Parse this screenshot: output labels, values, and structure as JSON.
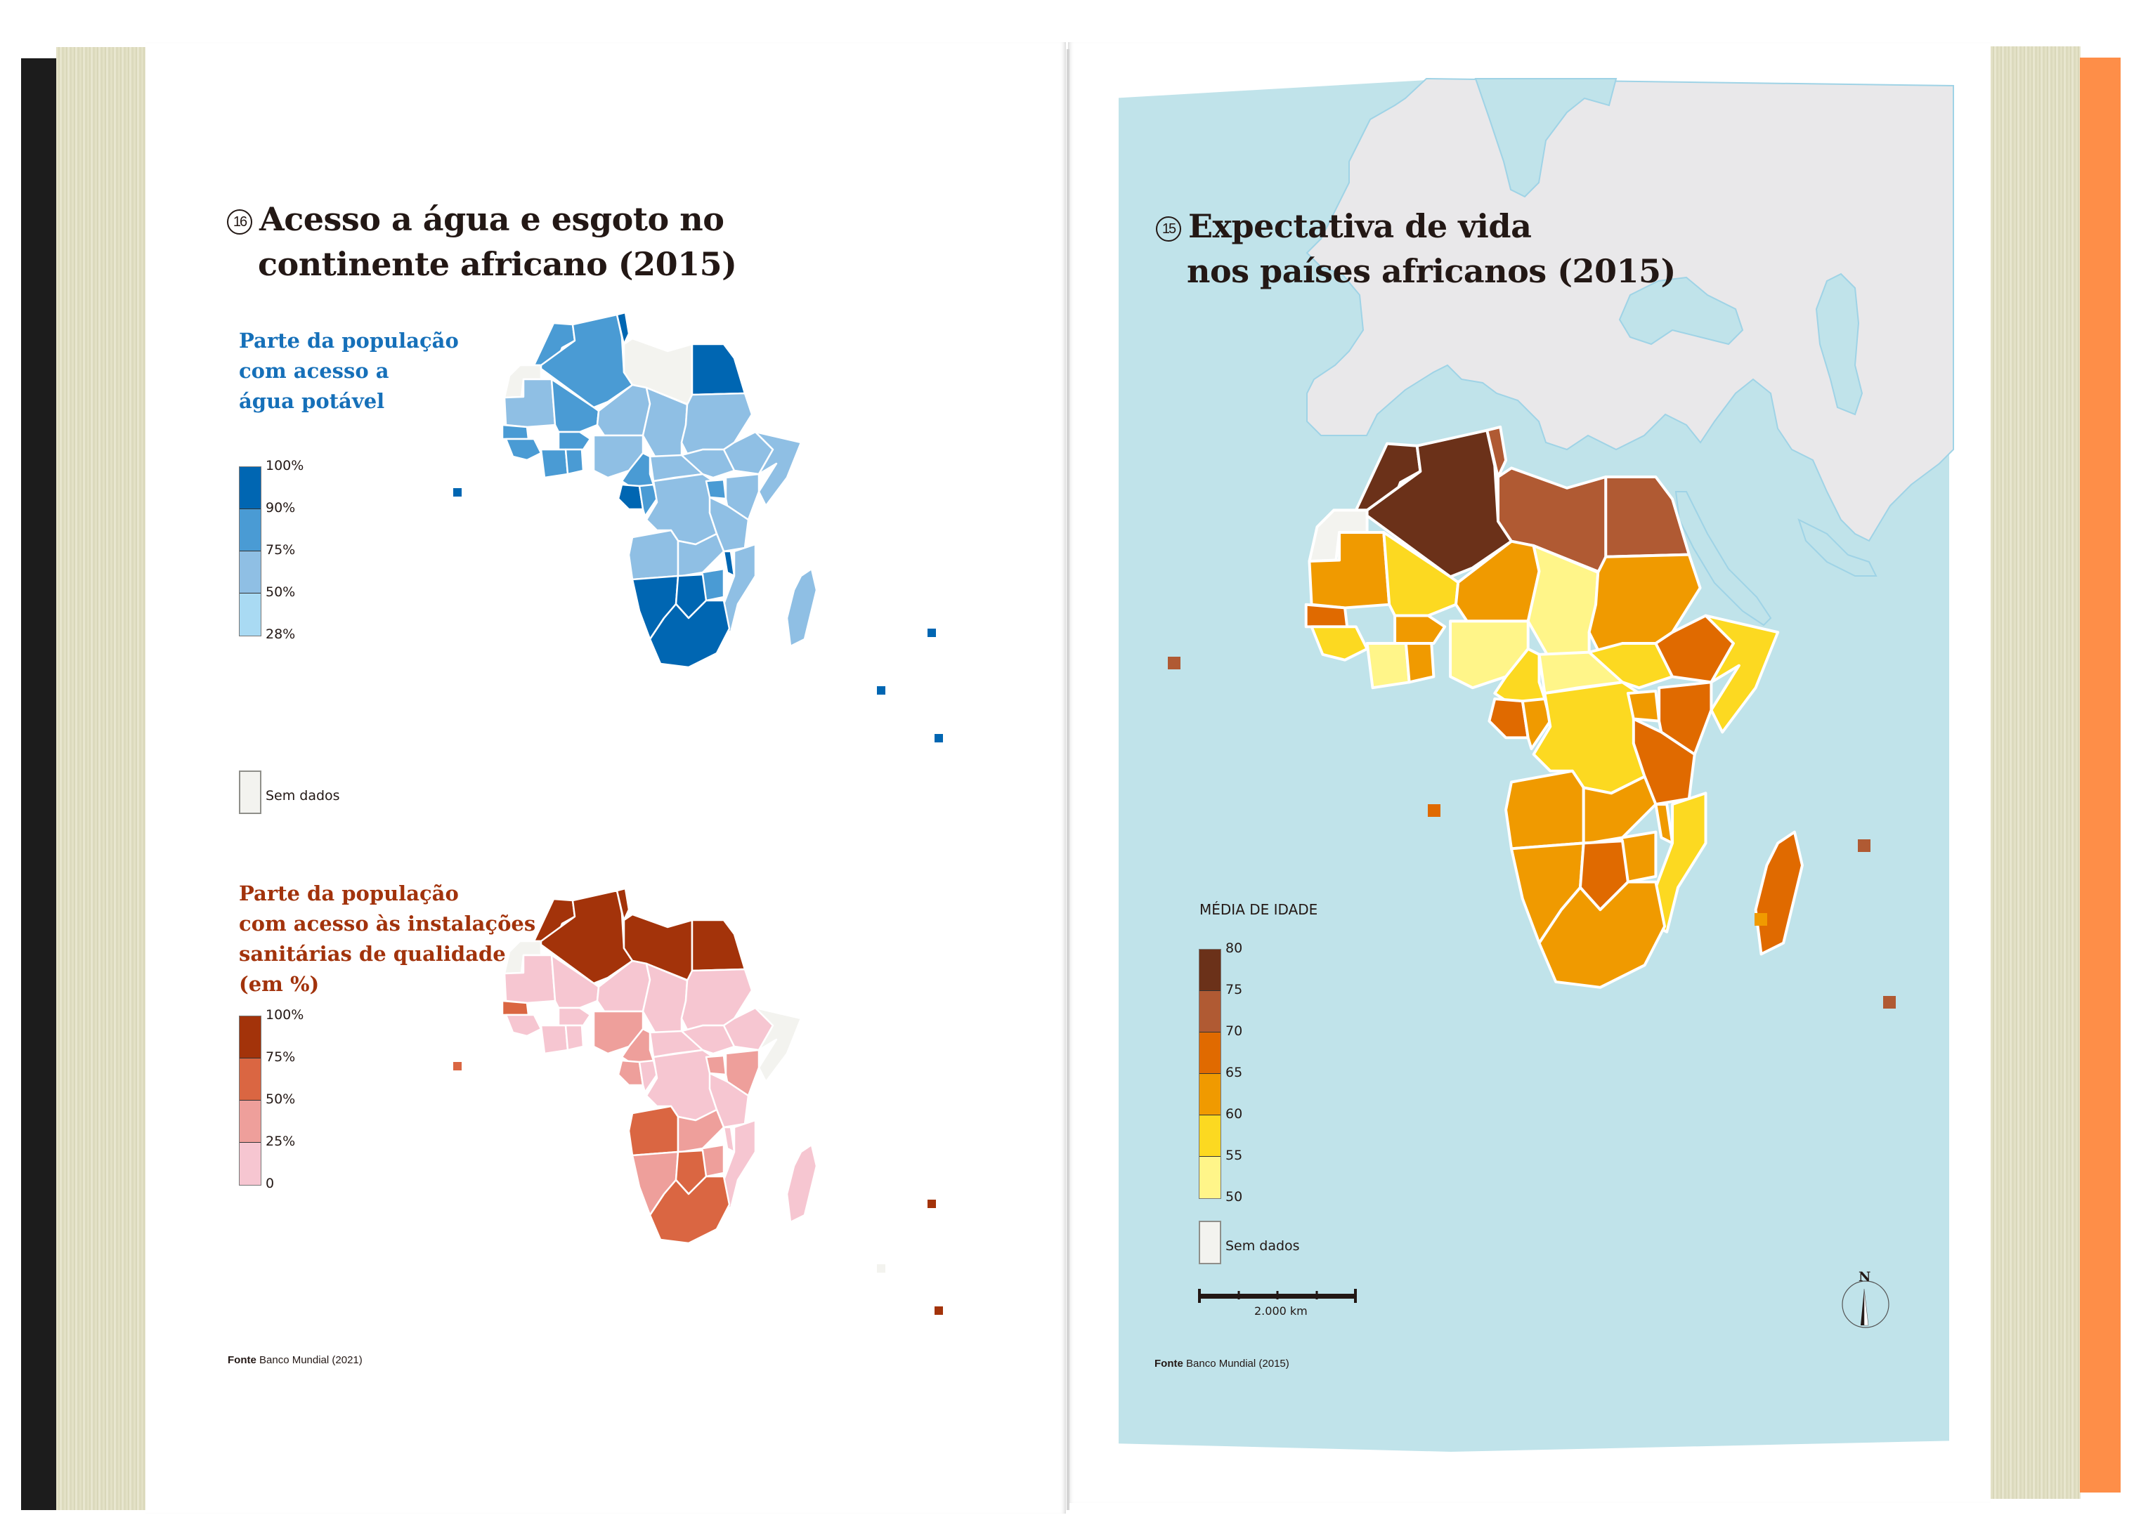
{
  "left_page": {
    "figure_number": "16",
    "title_line1": "Acesso a água e esgoto no",
    "title_line2": "continente africano (2015)",
    "water_map": {
      "subtitle_line1": "Parte da população",
      "subtitle_line2": "com acesso a",
      "subtitle_line3": "água potável",
      "legend_ticks": [
        "100%",
        "90%",
        "75%",
        "50%",
        "28%"
      ],
      "legend_colors": [
        "#0066b2",
        "#4a9bd4",
        "#8fbfe4",
        "#a9daf3"
      ],
      "no_data_label": "Sem dados",
      "no_data_color": "#f3f3ef"
    },
    "sanitation_map": {
      "subtitle_line1": "Parte da população",
      "subtitle_line2": "com acesso às instalações",
      "subtitle_line3": "sanitárias de qualidade",
      "subtitle_line4": "(em %)",
      "legend_ticks": [
        "100%",
        "75%",
        "50%",
        "25%",
        "0"
      ],
      "legend_colors": [
        "#a3330a",
        "#da6642",
        "#ee9f9b",
        "#f6c6d1"
      ]
    },
    "source_label": "Fonte",
    "source_text": "Banco Mundial (2021)"
  },
  "right_page": {
    "figure_number": "15",
    "title_line1": "Expectativa de vida",
    "title_line2": "nos países africanos (2015)",
    "legend_title": "MÉDIA DE IDADE",
    "legend_ticks": [
      "80",
      "75",
      "70",
      "65",
      "60",
      "55",
      "50"
    ],
    "legend_colors": [
      "#6b3119",
      "#b05a33",
      "#e06a00",
      "#f09a00",
      "#fcd921",
      "#fff589"
    ],
    "no_data_label": "Sem dados",
    "scale_label": "2.000 km",
    "north_label": "N",
    "source_label": "Fonte",
    "source_text": "Banco Mundial (2015)",
    "sea_color": "#c0e3ea",
    "land_other_color": "#e9e8ea"
  },
  "book": {
    "cover_left_color": "#1c1c1c",
    "cover_right_color": "#fe8e48"
  }
}
